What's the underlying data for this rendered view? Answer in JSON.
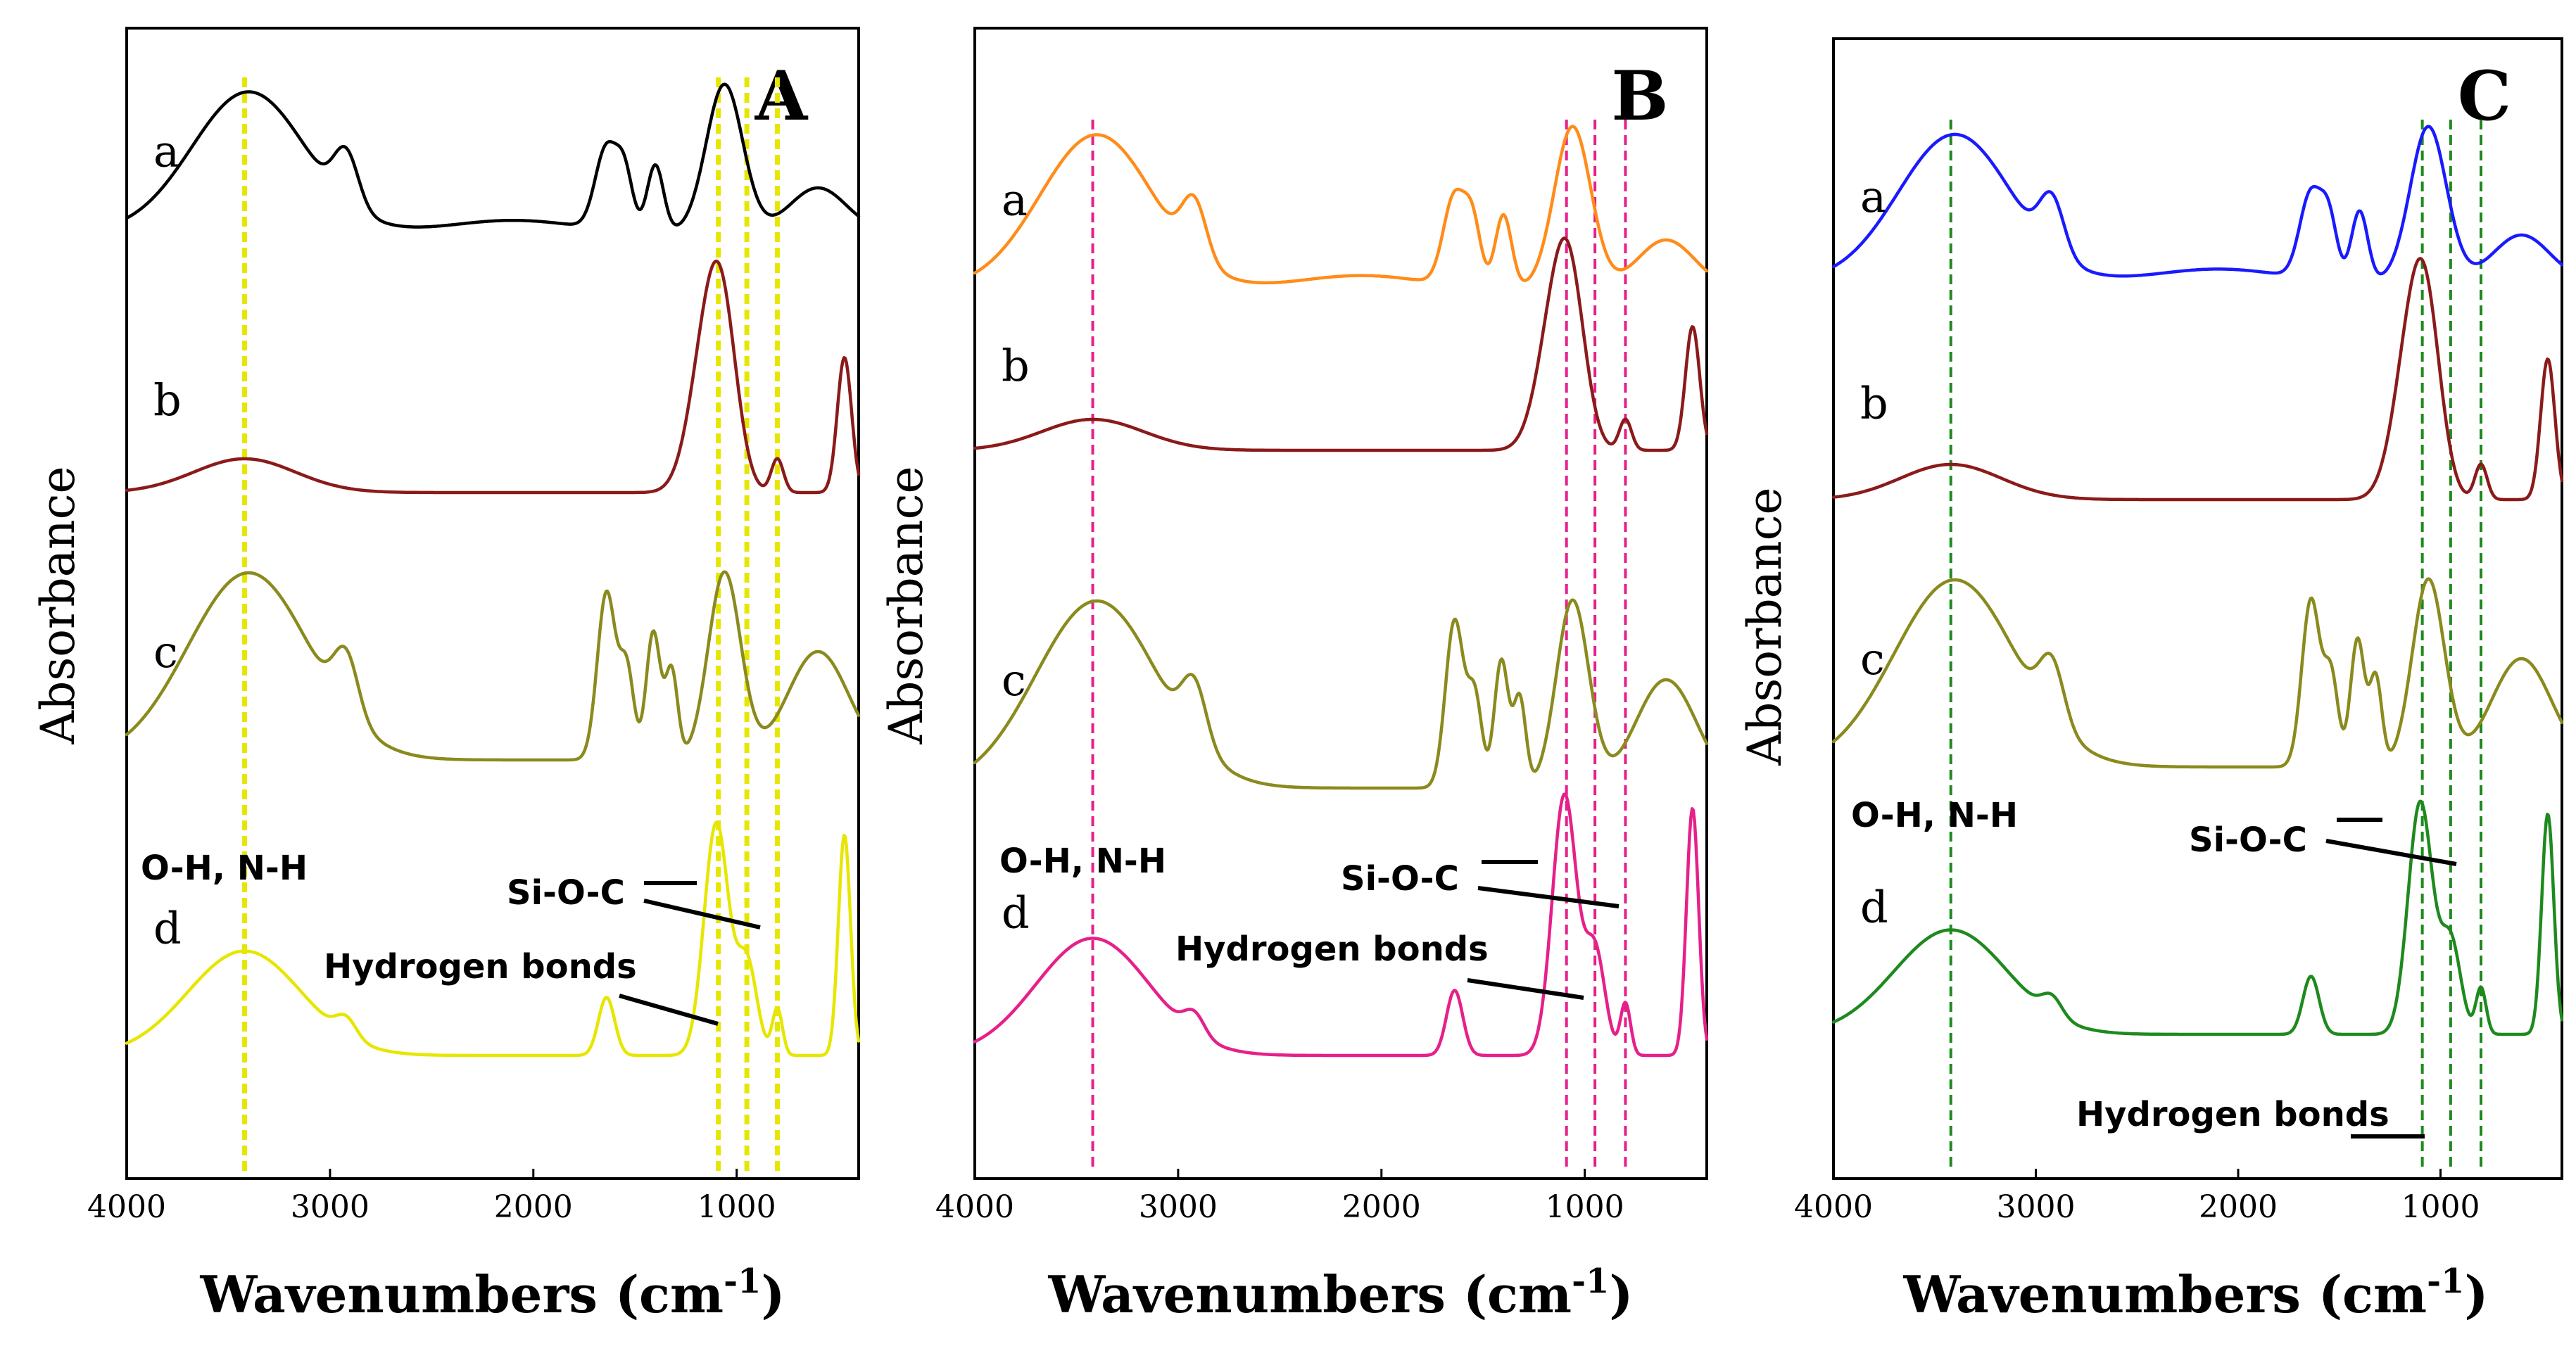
{
  "chart_data": [
    {
      "type": "line",
      "panel": "A",
      "xlabel": "Wavenumbers (cm",
      "xlabel_sup": "-1",
      "xlabel_close": ")",
      "ylabel": "Absorbance",
      "xlim": [
        4000,
        400
      ],
      "x_ticks": [
        4000,
        3000,
        2000,
        1000
      ],
      "series": [
        {
          "name": "a",
          "color": "#000000",
          "offset": 0
        },
        {
          "name": "b",
          "color": "#8b1a1a",
          "offset": 1
        },
        {
          "name": "c",
          "color": "#8a8a1e",
          "offset": 2
        },
        {
          "name": "d",
          "color": "#e6e600",
          "offset": 3
        }
      ],
      "guide_lines": {
        "wavenumbers": [
          3420,
          1090,
          950,
          800
        ],
        "color": "#e6e600"
      },
      "annotations": {
        "oh_nh": "O-H, N-H",
        "si_o_c": "Si-O-C",
        "hydrogen_bonds": "Hydrogen bonds"
      }
    },
    {
      "type": "line",
      "panel": "B",
      "xlabel": "Wavenumbers (cm",
      "xlabel_sup": "-1",
      "xlabel_close": ")",
      "ylabel": "Absorbance",
      "xlim": [
        4000,
        400
      ],
      "x_ticks": [
        4000,
        3000,
        2000,
        1000
      ],
      "series": [
        {
          "name": "a",
          "color": "#ff8c1a",
          "offset": 0
        },
        {
          "name": "b",
          "color": "#8b1a1a",
          "offset": 1
        },
        {
          "name": "c",
          "color": "#8a8a1e",
          "offset": 2
        },
        {
          "name": "d",
          "color": "#e6208a",
          "offset": 3
        }
      ],
      "guide_lines": {
        "wavenumbers": [
          3420,
          1090,
          950,
          800
        ],
        "color": "#e6208a"
      },
      "annotations": {
        "oh_nh": "O-H, N-H",
        "si_o_c": "Si-O-C",
        "hydrogen_bonds": "Hydrogen bonds"
      }
    },
    {
      "type": "line",
      "panel": "C",
      "xlabel": "Wavenumbers (cm",
      "xlabel_sup": "-1",
      "xlabel_close": ")",
      "ylabel": "Absorbance",
      "xlim": [
        4000,
        400
      ],
      "x_ticks": [
        4000,
        3000,
        2000,
        1000
      ],
      "series": [
        {
          "name": "a",
          "color": "#1a1aff",
          "offset": 0
        },
        {
          "name": "b",
          "color": "#8b1a1a",
          "offset": 1
        },
        {
          "name": "c",
          "color": "#8a8a1e",
          "offset": 2
        },
        {
          "name": "d",
          "color": "#1e8a1e",
          "offset": 3
        }
      ],
      "guide_lines": {
        "wavenumbers": [
          3420,
          1090,
          950,
          800
        ],
        "color": "#1e8a1e"
      },
      "annotations": {
        "oh_nh": "O-H, N-H",
        "si_o_c": "Si-O-C",
        "hydrogen_bonds": "Hydrogen bonds"
      }
    }
  ]
}
